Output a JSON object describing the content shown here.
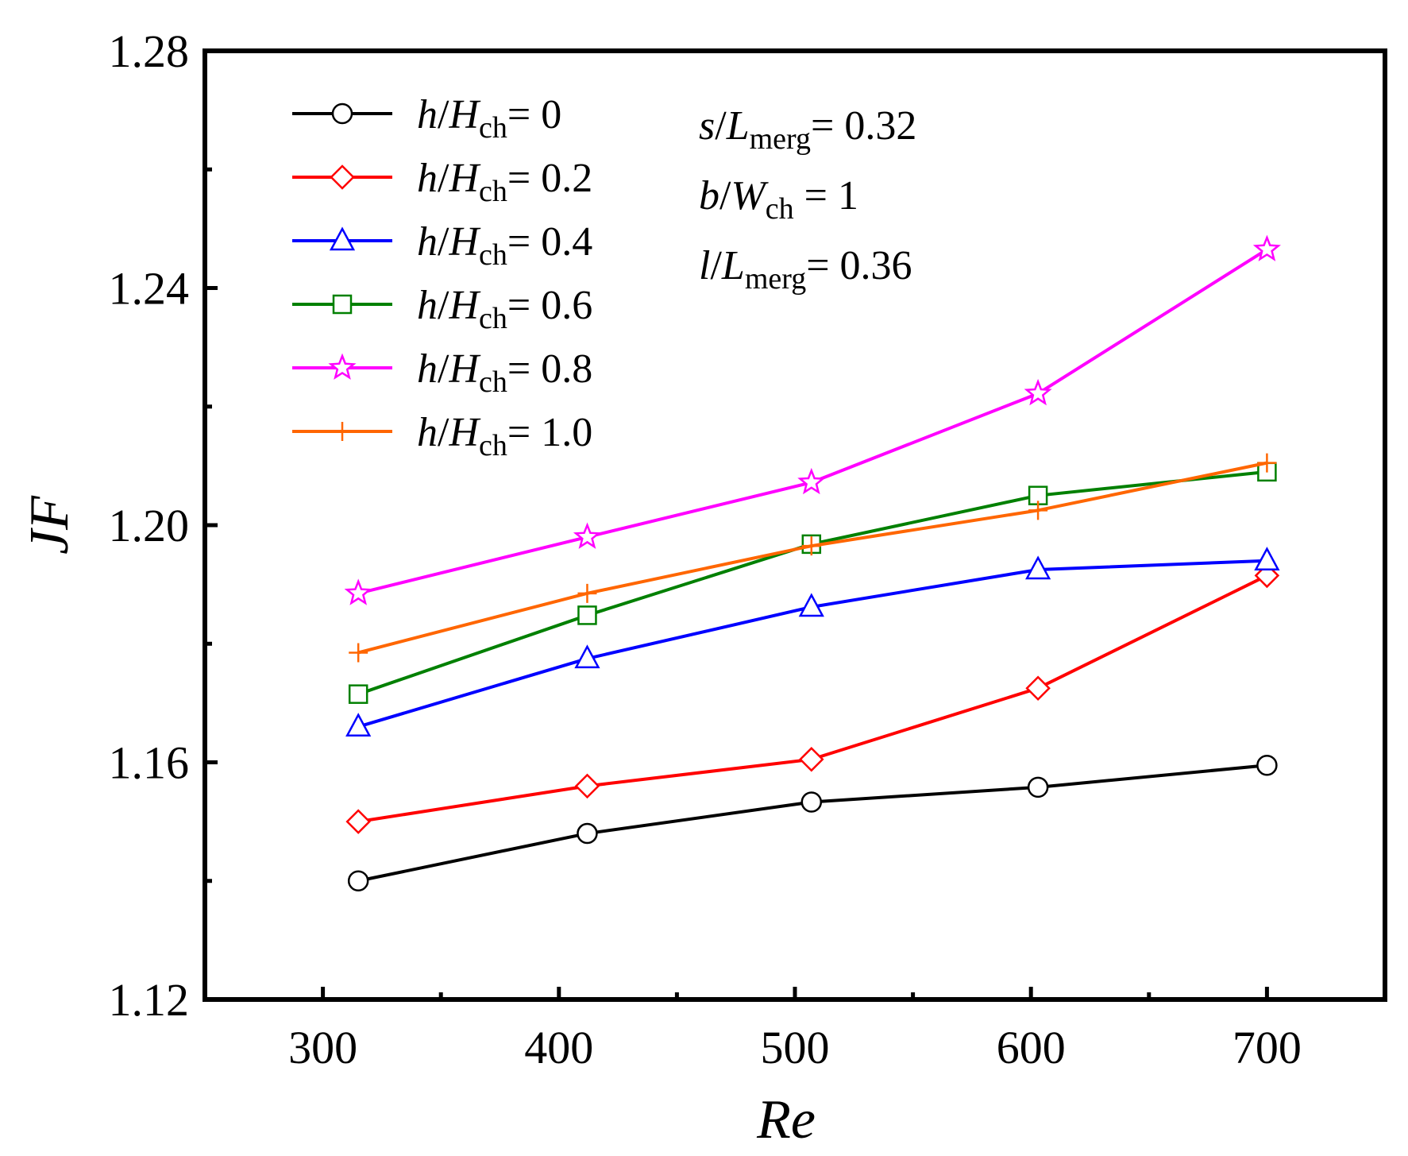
{
  "chart_data": {
    "type": "line",
    "xlabel": "Re",
    "ylabel": "JF",
    "xlim": [
      250,
      750
    ],
    "ylim": [
      1.12,
      1.28
    ],
    "x_ticks": [
      300,
      400,
      500,
      600,
      700
    ],
    "y_ticks": [
      1.12,
      1.16,
      1.2,
      1.24,
      1.28
    ],
    "x_tick_labels": [
      "300",
      "400",
      "500",
      "600",
      "700"
    ],
    "y_tick_labels": [
      "1.12",
      "1.16",
      "1.20",
      "1.24",
      "1.28"
    ],
    "x_minor_ticks": [
      350,
      450,
      550,
      650
    ],
    "y_minor_ticks": [
      1.14,
      1.18,
      1.22,
      1.26
    ],
    "x": [
      315,
      412,
      507,
      603,
      700
    ],
    "legend_position": "top-left",
    "series": [
      {
        "name": "h/Hch= 0",
        "var": "h",
        "ref": "H",
        "sub": "ch",
        "value_text": "0",
        "color": "#000000",
        "marker": "circle",
        "values": [
          1.14,
          1.148,
          1.1533,
          1.1558,
          1.1595
        ]
      },
      {
        "name": "h/Hch= 0.2",
        "var": "h",
        "ref": "H",
        "sub": "ch",
        "value_text": "0.2",
        "color": "#ff0000",
        "marker": "diamond",
        "values": [
          1.15,
          1.156,
          1.1605,
          1.1725,
          1.1915
        ]
      },
      {
        "name": "h/Hch= 0.4",
        "var": "h",
        "ref": "H",
        "sub": "ch",
        "value_text": "0.4",
        "color": "#0000ff",
        "marker": "triangle",
        "values": [
          1.166,
          1.1775,
          1.1862,
          1.1925,
          1.194
        ]
      },
      {
        "name": "h/Hch= 0.6",
        "var": "h",
        "ref": "H",
        "sub": "ch",
        "value_text": "0.6",
        "color": "#008000",
        "marker": "square",
        "values": [
          1.1715,
          1.1848,
          1.1968,
          1.205,
          1.209
        ]
      },
      {
        "name": "h/Hch= 0.8",
        "var": "h",
        "ref": "H",
        "sub": "ch",
        "value_text": "0.8",
        "color": "#ff00ff",
        "marker": "star",
        "values": [
          1.1885,
          1.198,
          1.2072,
          1.2222,
          1.2465
        ]
      },
      {
        "name": "h/Hch= 1.0",
        "var": "h",
        "ref": "H",
        "sub": "ch",
        "value_text": "1.0",
        "color": "#ff6600",
        "marker": "plus",
        "values": [
          1.1785,
          1.1885,
          1.1965,
          1.2025,
          1.2105
        ]
      }
    ],
    "annotations": [
      {
        "var": "s",
        "ref": "L",
        "sub": "merg",
        "eq": "= 0.32"
      },
      {
        "var": "b",
        "ref": "W",
        "sub": "ch",
        "eq": " = 1"
      },
      {
        "var": "l",
        "ref": "L",
        "sub": "merg",
        "eq": "= 0.36"
      }
    ]
  }
}
